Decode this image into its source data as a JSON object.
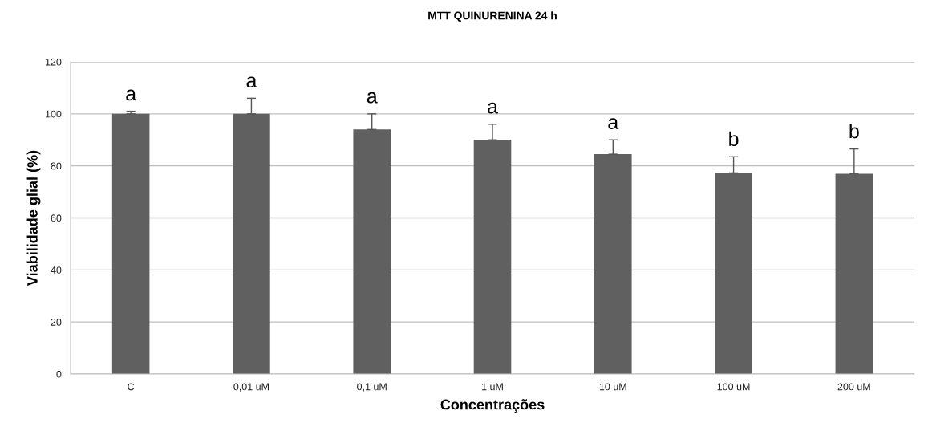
{
  "chart_data": {
    "type": "bar",
    "title": "MTT QUINURENINA 24 h",
    "xlabel": "Concentrações",
    "ylabel": "Viabilidade glial (%)",
    "categories": [
      "C",
      "0,01 uM",
      "0,1 uM",
      "1 uM",
      "10 uM",
      "100 uM",
      "200 uM"
    ],
    "values": [
      100,
      100,
      94,
      90,
      84.5,
      77.3,
      77
    ],
    "errors": [
      1,
      6,
      6,
      6,
      5.5,
      6.2,
      9.5
    ],
    "color": "#606060",
    "ylim": [
      0,
      120
    ],
    "yticks": [
      0,
      20,
      40,
      60,
      80,
      100,
      120
    ],
    "grid": "y",
    "legend": false,
    "annotations": [
      "a",
      "a",
      "a",
      "a",
      "a",
      "b",
      "b"
    ]
  }
}
